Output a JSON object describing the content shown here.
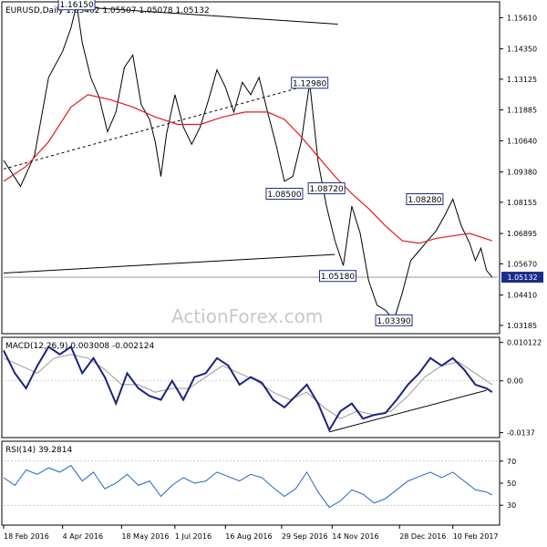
{
  "chart_data": {
    "type": "line",
    "instrument_header": "EURUSD,Daily  1.05462 1.05507 1.05078 1.05132",
    "watermark": "ActionForex.com",
    "price_panel": {
      "axis_ticks": [
        "1.15610",
        "1.14350",
        "1.13125",
        "1.11885",
        "1.10640",
        "1.09380",
        "1.08155",
        "1.06895",
        "1.05670",
        "1.04410",
        "1.03185"
      ],
      "axis_values": [
        1.1561,
        1.1435,
        1.13125,
        1.11885,
        1.1064,
        1.0938,
        1.08155,
        1.06895,
        1.0567,
        1.0441,
        1.03185
      ],
      "ylim": [
        1.0285,
        1.1625
      ],
      "last_price": "1.05132",
      "price_polyline": [
        [
          0,
          1.0985
        ],
        [
          6,
          1.088
        ],
        [
          11,
          1.1005
        ],
        [
          16,
          1.132
        ],
        [
          21,
          1.1425
        ],
        [
          24,
          1.152
        ],
        [
          26,
          1.1615
        ],
        [
          28,
          1.146
        ],
        [
          31,
          1.132
        ],
        [
          34,
          1.124
        ],
        [
          37,
          1.11
        ],
        [
          40,
          1.118
        ],
        [
          43,
          1.136
        ],
        [
          46,
          1.141
        ],
        [
          49,
          1.121
        ],
        [
          52,
          1.115
        ],
        [
          54,
          1.106
        ],
        [
          56,
          1.092
        ],
        [
          58,
          1.109
        ],
        [
          61,
          1.125
        ],
        [
          64,
          1.112
        ],
        [
          67,
          1.105
        ],
        [
          70,
          1.112
        ],
        [
          73,
          1.123
        ],
        [
          76,
          1.135
        ],
        [
          79,
          1.128
        ],
        [
          82,
          1.118
        ],
        [
          85,
          1.13
        ],
        [
          88,
          1.125
        ],
        [
          91,
          1.132
        ],
        [
          94,
          1.118
        ],
        [
          97,
          1.105
        ],
        [
          100,
          1.09
        ],
        [
          103,
          1.092
        ],
        [
          106,
          1.106
        ],
        [
          109,
          1.1298
        ],
        [
          112,
          1.098
        ],
        [
          115,
          1.08
        ],
        [
          118,
          1.066
        ],
        [
          121,
          1.056
        ],
        [
          124,
          1.08
        ],
        [
          127,
          1.069
        ],
        [
          130,
          1.05
        ],
        [
          133,
          1.04
        ],
        [
          136,
          1.038
        ],
        [
          139,
          1.0339
        ],
        [
          142,
          1.045
        ],
        [
          145,
          1.058
        ],
        [
          148,
          1.062
        ],
        [
          151,
          1.066
        ],
        [
          154,
          1.07
        ],
        [
          157,
          1.076
        ],
        [
          160,
          1.0828
        ],
        [
          163,
          1.072
        ],
        [
          166,
          1.065
        ],
        [
          168,
          1.058
        ],
        [
          170,
          1.063
        ],
        [
          172,
          1.054
        ],
        [
          174,
          1.0513
        ]
      ],
      "ma_series": [
        [
          0,
          1.09
        ],
        [
          8,
          1.096
        ],
        [
          16,
          1.106
        ],
        [
          24,
          1.12
        ],
        [
          30,
          1.125
        ],
        [
          38,
          1.123
        ],
        [
          46,
          1.12
        ],
        [
          54,
          1.116
        ],
        [
          62,
          1.113
        ],
        [
          70,
          1.113
        ],
        [
          78,
          1.116
        ],
        [
          86,
          1.118
        ],
        [
          94,
          1.118
        ],
        [
          100,
          1.115
        ],
        [
          106,
          1.108
        ],
        [
          112,
          1.1
        ],
        [
          118,
          1.092
        ],
        [
          124,
          1.085
        ],
        [
          130,
          1.079
        ],
        [
          136,
          1.072
        ],
        [
          142,
          1.066
        ],
        [
          148,
          1.065
        ],
        [
          154,
          1.067
        ],
        [
          160,
          1.068
        ],
        [
          166,
          1.069
        ],
        [
          174,
          1.066
        ]
      ],
      "labels": [
        {
          "text": "1.16150",
          "x": 26,
          "y": 1.1615
        },
        {
          "text": "1.12980",
          "x": 109,
          "y": 1.1298
        },
        {
          "text": "1.08500",
          "x": 100,
          "y": 1.085
        },
        {
          "text": "1.08720",
          "x": 115,
          "y": 1.0872
        },
        {
          "text": "1.08280",
          "x": 150,
          "y": 1.0828
        },
        {
          "text": "1.05180",
          "x": 119,
          "y": 1.0518
        },
        {
          "text": "1.03390",
          "x": 139,
          "y": 1.0339
        }
      ],
      "trendlines": [
        {
          "from": [
            26,
            1.1605
          ],
          "to": [
            119,
            1.1535
          ],
          "style": "solid"
        },
        {
          "from": [
            0,
            1.095
          ],
          "to": [
            109,
            1.129
          ],
          "style": "dashed"
        },
        {
          "from": [
            0,
            1.053
          ],
          "to": [
            118,
            1.0605
          ],
          "style": "solid"
        }
      ],
      "hline_value": 1.0513
    },
    "macd_panel": {
      "title": "MACD(12,26,9) 0.003008 -0.002124",
      "axis_ticks": [
        "0.010122",
        "0.00",
        "-0.0137"
      ],
      "axis_values": [
        0.010122,
        0.0,
        -0.0137
      ],
      "ylim": [
        -0.015,
        0.0115
      ],
      "macd_series": [
        [
          0,
          0.008
        ],
        [
          4,
          0.002
        ],
        [
          8,
          -0.002
        ],
        [
          12,
          0.004
        ],
        [
          16,
          0.009
        ],
        [
          20,
          0.007
        ],
        [
          24,
          0.009
        ],
        [
          28,
          0.002
        ],
        [
          32,
          0.006
        ],
        [
          36,
          0.001
        ],
        [
          40,
          -0.006
        ],
        [
          44,
          0.002
        ],
        [
          48,
          -0.002
        ],
        [
          52,
          -0.004
        ],
        [
          56,
          -0.005
        ],
        [
          60,
          0.0
        ],
        [
          64,
          -0.005
        ],
        [
          68,
          0.001
        ],
        [
          72,
          0.002
        ],
        [
          76,
          0.006
        ],
        [
          80,
          0.004
        ],
        [
          84,
          -0.001
        ],
        [
          88,
          0.001
        ],
        [
          92,
          -0.0005
        ],
        [
          96,
          -0.005
        ],
        [
          100,
          -0.007
        ],
        [
          104,
          -0.004
        ],
        [
          108,
          -0.001
        ],
        [
          112,
          -0.006
        ],
        [
          116,
          -0.013
        ],
        [
          120,
          -0.008
        ],
        [
          124,
          -0.006
        ],
        [
          128,
          -0.01
        ],
        [
          132,
          -0.009
        ],
        [
          136,
          -0.0085
        ],
        [
          140,
          -0.005
        ],
        [
          144,
          -0.001
        ],
        [
          148,
          0.002
        ],
        [
          152,
          0.006
        ],
        [
          156,
          0.004
        ],
        [
          160,
          0.006
        ],
        [
          164,
          0.003
        ],
        [
          168,
          -0.001
        ],
        [
          172,
          -0.002
        ],
        [
          174,
          -0.003
        ]
      ],
      "signal_series": [
        [
          0,
          0.006
        ],
        [
          6,
          0.004
        ],
        [
          12,
          0.002
        ],
        [
          18,
          0.006
        ],
        [
          24,
          0.007
        ],
        [
          30,
          0.006
        ],
        [
          36,
          0.003
        ],
        [
          42,
          -0.001
        ],
        [
          48,
          -0.001
        ],
        [
          54,
          -0.003
        ],
        [
          60,
          -0.002
        ],
        [
          66,
          -0.002
        ],
        [
          72,
          0.001
        ],
        [
          78,
          0.004
        ],
        [
          84,
          0.002
        ],
        [
          90,
          0.0
        ],
        [
          96,
          -0.003
        ],
        [
          102,
          -0.005
        ],
        [
          108,
          -0.003
        ],
        [
          114,
          -0.007
        ],
        [
          120,
          -0.01
        ],
        [
          126,
          -0.008
        ],
        [
          132,
          -0.009
        ],
        [
          138,
          -0.008
        ],
        [
          144,
          -0.004
        ],
        [
          150,
          0.001
        ],
        [
          156,
          0.004
        ],
        [
          162,
          0.005
        ],
        [
          168,
          0.002
        ],
        [
          174,
          -0.001
        ]
      ],
      "trendline": {
        "from": [
          116,
          -0.0135
        ],
        "to": [
          172,
          -0.0025
        ]
      }
    },
    "rsi_panel": {
      "title": "RSI(14) 39.2814",
      "axis_ticks": [
        "70",
        "50",
        "30"
      ],
      "axis_values": [
        70,
        50,
        30
      ],
      "ylim": [
        12,
        88
      ],
      "rsi_series": [
        [
          0,
          55
        ],
        [
          4,
          48
        ],
        [
          8,
          62
        ],
        [
          12,
          58
        ],
        [
          16,
          64
        ],
        [
          20,
          60
        ],
        [
          24,
          66
        ],
        [
          28,
          52
        ],
        [
          32,
          60
        ],
        [
          36,
          45
        ],
        [
          40,
          50
        ],
        [
          44,
          58
        ],
        [
          48,
          48
        ],
        [
          52,
          52
        ],
        [
          56,
          38
        ],
        [
          60,
          48
        ],
        [
          64,
          55
        ],
        [
          68,
          50
        ],
        [
          72,
          52
        ],
        [
          76,
          60
        ],
        [
          80,
          56
        ],
        [
          84,
          52
        ],
        [
          88,
          58
        ],
        [
          92,
          55
        ],
        [
          96,
          46
        ],
        [
          100,
          38
        ],
        [
          104,
          45
        ],
        [
          108,
          60
        ],
        [
          112,
          42
        ],
        [
          116,
          28
        ],
        [
          120,
          34
        ],
        [
          124,
          44
        ],
        [
          128,
          40
        ],
        [
          132,
          32
        ],
        [
          136,
          36
        ],
        [
          140,
          44
        ],
        [
          144,
          52
        ],
        [
          148,
          56
        ],
        [
          152,
          60
        ],
        [
          156,
          55
        ],
        [
          160,
          60
        ],
        [
          164,
          52
        ],
        [
          168,
          44
        ],
        [
          172,
          42
        ],
        [
          174,
          39.3
        ]
      ]
    },
    "x_axis": {
      "range": [
        0,
        176
      ],
      "ticks": [
        {
          "x": 0,
          "label": "18 Feb 2016"
        },
        {
          "x": 21,
          "label": "4 Apr 2016"
        },
        {
          "x": 42,
          "label": "18 May 2016"
        },
        {
          "x": 61,
          "label": "1 Jul 2016"
        },
        {
          "x": 79,
          "label": "16 Aug 2016"
        },
        {
          "x": 99,
          "label": "29 Sep 2016"
        },
        {
          "x": 117,
          "label": "14 Nov 2016"
        },
        {
          "x": 141,
          "label": "28 Dec 2016"
        },
        {
          "x": 160,
          "label": "10 Feb 2017"
        }
      ]
    },
    "colors": {
      "price": "#000000",
      "ma": "#e31a1c",
      "label_border": "#1c2c8c",
      "macd": "#1a237e",
      "signal": "#999999",
      "rsi": "#1f66c8",
      "last_price_bg": "#1c2c8c",
      "watermark": "#c8c8c8"
    }
  }
}
